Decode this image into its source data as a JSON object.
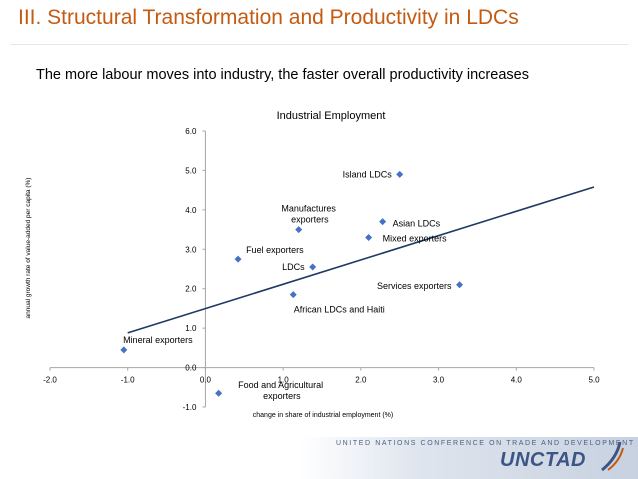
{
  "slide": {
    "title": "III.   Structural Transformation and Productivity in LDCs",
    "subtitle": "The more labour moves into industry, the faster overall productivity increases"
  },
  "chart_data": {
    "type": "scatter",
    "title": "Industrial Employment",
    "xlabel": "change in share of  industrial employment (%)",
    "ylabel": "annual growth rate of value-added per capita (%)",
    "xlim": [
      -2.0,
      5.0
    ],
    "ylim": [
      -1.0,
      6.0
    ],
    "x_ticks": [
      "-2.0",
      "-1.0",
      "0.0",
      "1.0",
      "2.0",
      "3.0",
      "4.0",
      "5.0"
    ],
    "y_ticks": [
      "-1.0",
      "0.0",
      "1.0",
      "2.0",
      "3.0",
      "4.0",
      "5.0",
      "6.0"
    ],
    "points": [
      {
        "label": "Island LDCs",
        "x": 2.5,
        "y": 4.9
      },
      {
        "label": "Asian LDCs",
        "x": 2.28,
        "y": 3.7
      },
      {
        "label": "Mixed exporters",
        "x": 2.1,
        "y": 3.3
      },
      {
        "label": "Manufactures exporters",
        "x": 1.2,
        "y": 3.5
      },
      {
        "label": "Fuel exporters",
        "x": 0.42,
        "y": 2.75
      },
      {
        "label": "LDCs",
        "x": 1.38,
        "y": 2.55
      },
      {
        "label": "African LDCs and Haiti",
        "x": 1.13,
        "y": 1.85
      },
      {
        "label": "Services exporters",
        "x": 3.27,
        "y": 2.1
      },
      {
        "label": "Mineral exporters",
        "x": -1.05,
        "y": 0.45
      },
      {
        "label": "Food and Agricultural exporters",
        "x": 0.17,
        "y": -0.65
      }
    ],
    "trendline": {
      "x_start": -1.0,
      "y_start": 0.88,
      "x_end": 5.0,
      "y_end": 4.58
    },
    "colors": {
      "marker": "#4472c4",
      "trendline": "#1f3864",
      "axis": "#a6a6a6"
    }
  },
  "footer": {
    "conference": "UNITED NATIONS CONFERENCE ON TRADE AND DEVELOPMENT",
    "logo": "UNCTAD"
  }
}
